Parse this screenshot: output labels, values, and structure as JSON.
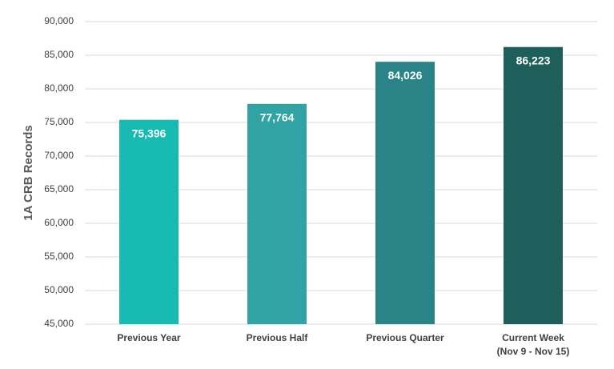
{
  "chart_data": {
    "type": "bar",
    "y_label": "1A CRB Records",
    "categories": [
      "Previous Year",
      "Previous Half",
      "Previous Quarter",
      "Current Week\n(Nov 9 - Nov 15)"
    ],
    "values": [
      75396,
      77764,
      84026,
      86223
    ],
    "value_labels": [
      "75,396",
      "77,764",
      "84,026",
      "86,223"
    ],
    "colors": [
      "#17bbb1",
      "#32a3a4",
      "#2a8487",
      "#1e5f5c"
    ],
    "ylim": [
      45000,
      90000
    ],
    "yticks": [
      {
        "value": 45000,
        "label": "45,000"
      },
      {
        "value": 50000,
        "label": "50,000"
      },
      {
        "value": 55000,
        "label": "55,000"
      },
      {
        "value": 60000,
        "label": "60,000"
      },
      {
        "value": 65000,
        "label": "65,000"
      },
      {
        "value": 70000,
        "label": "70,000"
      },
      {
        "value": 75000,
        "label": "75,000"
      },
      {
        "value": 80000,
        "label": "80,000"
      },
      {
        "value": 85000,
        "label": "85,000"
      },
      {
        "value": 90000,
        "label": "90,000"
      }
    ],
    "grid": true
  }
}
